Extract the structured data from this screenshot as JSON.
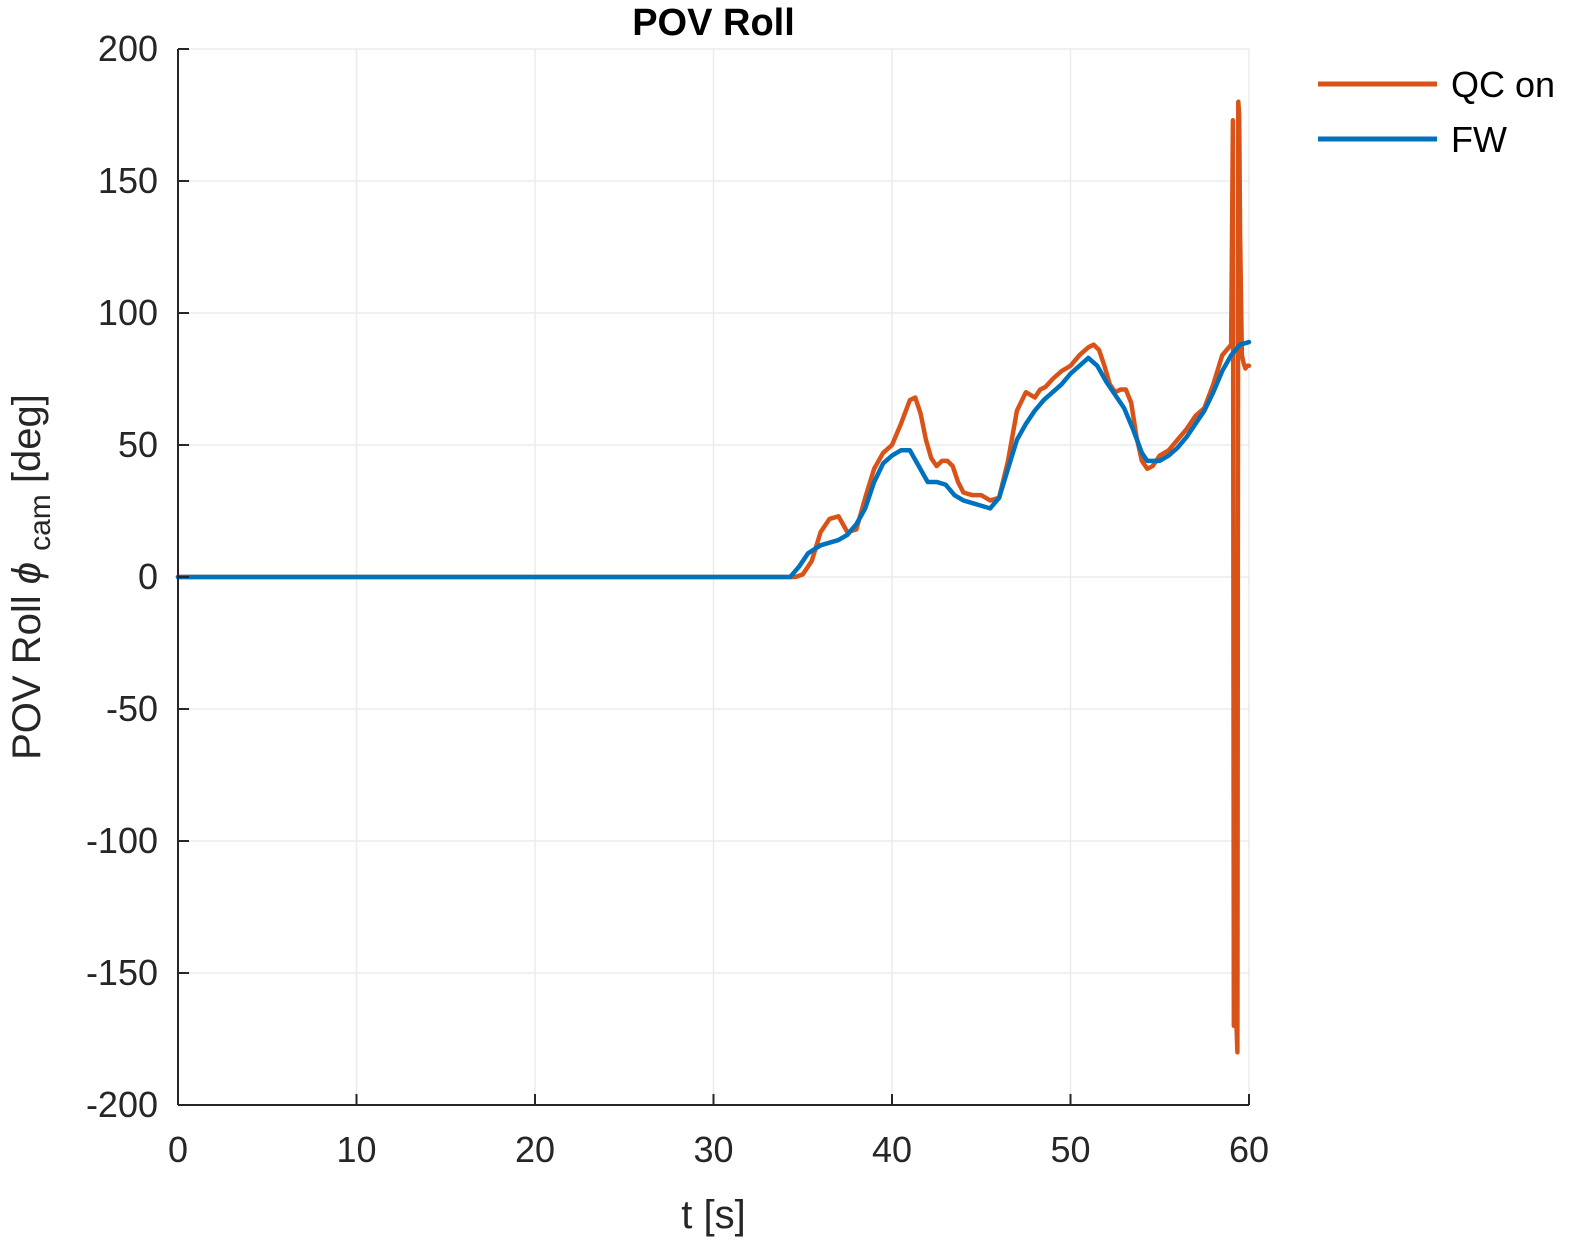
{
  "chart_data": {
    "type": "line",
    "title": "POV Roll",
    "xlabel": "t [s]",
    "ylabel": {
      "prefix": "POV Roll ",
      "symbol": "ϕ",
      "subscript": "cam",
      "suffix": " [deg]"
    },
    "xlim": [
      0,
      60
    ],
    "ylim": [
      -200,
      200
    ],
    "xticks": [
      0,
      10,
      20,
      30,
      40,
      50,
      60
    ],
    "yticks": [
      -200,
      -150,
      -100,
      -50,
      0,
      50,
      100,
      150,
      200
    ],
    "grid": true,
    "legend_position": "top-right outside",
    "series": [
      {
        "name": "QC on",
        "color": "#D95319",
        "x": [
          0,
          34.3,
          34.6,
          35.0,
          35.5,
          36.0,
          36.5,
          37.0,
          37.5,
          38.0,
          38.5,
          39.0,
          39.5,
          40.0,
          40.5,
          41.0,
          41.3,
          41.6,
          41.9,
          42.2,
          42.5,
          42.8,
          43.1,
          43.4,
          43.7,
          44.0,
          44.5,
          45.0,
          45.5,
          46.0,
          46.5,
          47.0,
          47.5,
          48.0,
          48.3,
          48.6,
          49.0,
          49.5,
          50.0,
          50.5,
          51.0,
          51.3,
          51.6,
          51.9,
          52.2,
          52.5,
          52.8,
          53.1,
          53.4,
          53.7,
          54.0,
          54.3,
          54.6,
          55.0,
          55.5,
          56.0,
          56.5,
          57.0,
          57.5,
          58.0,
          58.5,
          59.0,
          59.1,
          59.15,
          59.2,
          59.3,
          59.35,
          59.4,
          59.45,
          59.5,
          59.6,
          59.7,
          59.8,
          59.9,
          60.0
        ],
        "y": [
          0,
          0,
          0,
          1,
          6,
          17,
          22,
          23,
          17,
          18,
          30,
          41,
          47,
          50,
          58,
          67,
          68,
          62,
          52,
          45,
          42,
          44,
          44,
          42,
          36,
          32,
          31,
          31,
          29,
          30,
          44,
          63,
          70,
          68,
          71,
          72,
          75,
          78,
          80,
          84,
          87,
          88,
          86,
          80,
          73,
          70,
          71,
          71,
          66,
          53,
          44,
          41,
          42,
          46,
          48,
          52,
          56,
          61,
          64,
          73,
          84,
          88,
          173,
          -170,
          -115,
          -170,
          -180,
          180,
          175,
          130,
          84,
          81,
          79,
          80,
          80
        ]
      },
      {
        "name": "FW",
        "color": "#0072BD",
        "x": [
          0,
          34.3,
          34.8,
          35.3,
          36.0,
          36.5,
          37.0,
          37.5,
          38.0,
          38.5,
          39.0,
          39.5,
          40.0,
          40.5,
          41.0,
          41.5,
          42.0,
          42.5,
          43.0,
          43.5,
          44.0,
          44.5,
          45.0,
          45.5,
          46.0,
          46.5,
          47.0,
          47.5,
          48.0,
          48.5,
          49.0,
          49.5,
          50.0,
          50.5,
          51.0,
          51.5,
          52.0,
          52.5,
          53.0,
          53.5,
          54.0,
          54.3,
          54.6,
          55.0,
          55.5,
          56.0,
          56.5,
          57.0,
          57.5,
          58.0,
          58.5,
          59.0,
          59.5,
          60.0
        ],
        "y": [
          0,
          0,
          4,
          9,
          12,
          13,
          14,
          16,
          20,
          26,
          36,
          43,
          46,
          48,
          48,
          42,
          36,
          36,
          35,
          31,
          29,
          28,
          27,
          26,
          30,
          41,
          52,
          58,
          63,
          67,
          70,
          73,
          77,
          80,
          83,
          80,
          74,
          69,
          64,
          56,
          47,
          44,
          44,
          44,
          46,
          49,
          53,
          58,
          63,
          70,
          78,
          84,
          88,
          89
        ]
      }
    ]
  }
}
